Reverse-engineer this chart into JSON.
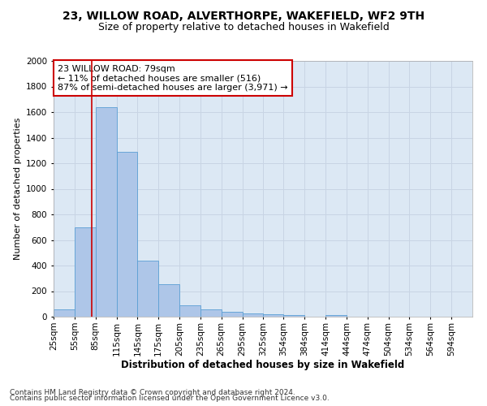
{
  "title": "23, WILLOW ROAD, ALVERTHORPE, WAKEFIELD, WF2 9TH",
  "subtitle": "Size of property relative to detached houses in Wakefield",
  "xlabel": "Distribution of detached houses by size in Wakefield",
  "ylabel": "Number of detached properties",
  "footnote1": "Contains HM Land Registry data © Crown copyright and database right 2024.",
  "footnote2": "Contains public sector information licensed under the Open Government Licence v3.0.",
  "annotation_line1": "23 WILLOW ROAD: 79sqm",
  "annotation_line2": "← 11% of detached houses are smaller (516)",
  "annotation_line3": "87% of semi-detached houses are larger (3,971) →",
  "property_size": 79,
  "bar_edges": [
    25,
    55,
    85,
    115,
    145,
    175,
    205,
    235,
    265,
    295,
    325,
    354,
    384,
    414,
    444,
    474,
    504,
    534,
    564,
    594,
    624
  ],
  "bar_heights": [
    60,
    700,
    1640,
    1290,
    440,
    255,
    90,
    55,
    40,
    25,
    20,
    10,
    0,
    15,
    0,
    0,
    0,
    0,
    0,
    0
  ],
  "bar_color": "#aec6e8",
  "bar_edge_color": "#5a9fd4",
  "vline_color": "#cc0000",
  "vline_x": 79,
  "ylim": [
    0,
    2000
  ],
  "yticks": [
    0,
    200,
    400,
    600,
    800,
    1000,
    1200,
    1400,
    1600,
    1800,
    2000
  ],
  "grid_color": "#c8d4e4",
  "bg_color": "#dce8f4",
  "title_fontsize": 10,
  "subtitle_fontsize": 9,
  "xlabel_fontsize": 8.5,
  "ylabel_fontsize": 8,
  "tick_fontsize": 7.5,
  "annotation_fontsize": 8,
  "footnote_fontsize": 6.5
}
